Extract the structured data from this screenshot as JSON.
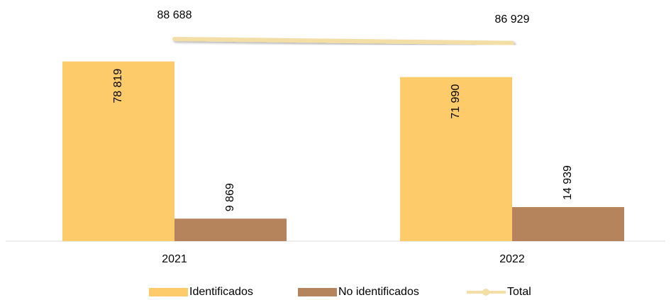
{
  "chart_data": {
    "type": "bar",
    "categories": [
      "2021",
      "2022"
    ],
    "series": [
      {
        "name": "Identificados",
        "type": "bar",
        "color": "#fecb6a",
        "values": [
          78819,
          71990
        ],
        "value_labels": [
          "78 819",
          "71 990"
        ]
      },
      {
        "name": "No identificados",
        "type": "bar",
        "color": "#b5835c",
        "values": [
          9869,
          14939
        ],
        "value_labels": [
          "9 869",
          "14 939"
        ]
      },
      {
        "name": "Total",
        "type": "line",
        "color": "#f3dea6",
        "values": [
          88688,
          86929
        ],
        "value_labels": [
          "88 688",
          "86 929"
        ]
      }
    ],
    "legend": "bottom"
  }
}
